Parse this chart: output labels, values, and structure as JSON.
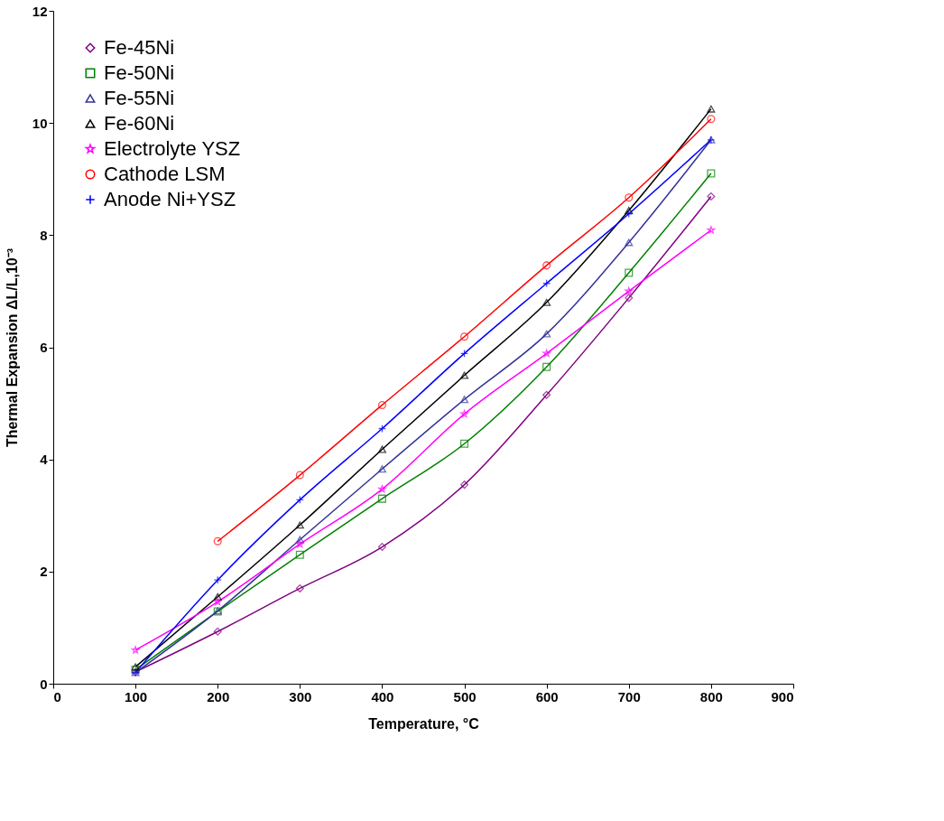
{
  "chart_data": {
    "type": "line",
    "xlabel": "Temperature, °C",
    "ylabel": "Thermal Expansion ΔL/L,10⁻³",
    "x": [
      100,
      200,
      300,
      400,
      500,
      600,
      700,
      800
    ],
    "xlim": [
      0,
      900
    ],
    "xticks": [
      0,
      100,
      200,
      300,
      400,
      500,
      600,
      700,
      800,
      900
    ],
    "ylim": [
      0,
      12
    ],
    "yticks": [
      0,
      2,
      4,
      6,
      8,
      10,
      12
    ],
    "grid": false,
    "legend": "top left",
    "line_style": "solid",
    "series": [
      {
        "name": "Fe-45Ni",
        "color": "#800080",
        "marker": "diamond",
        "values": [
          0.21,
          0.93,
          1.7,
          2.44,
          3.55,
          5.15,
          6.88,
          8.69
        ]
      },
      {
        "name": "Fe-50Ni",
        "color": "#008000",
        "marker": "square",
        "values": [
          0.25,
          1.29,
          2.3,
          3.3,
          4.28,
          5.65,
          7.33,
          9.1
        ]
      },
      {
        "name": "Fe-55Ni",
        "color": "#333399",
        "marker": "triangle",
        "values": [
          0.2,
          1.3,
          2.57,
          3.83,
          5.07,
          6.24,
          7.87,
          9.7
        ]
      },
      {
        "name": "Fe-60Ni",
        "color": "#000000",
        "marker": "triangle",
        "values": [
          0.3,
          1.55,
          2.83,
          4.18,
          5.5,
          6.8,
          8.44,
          10.25
        ]
      },
      {
        "name": "Electrolyte YSZ",
        "color": "#ff00ff",
        "marker": "star",
        "values": [
          0.6,
          1.46,
          2.49,
          3.47,
          4.81,
          5.89,
          7.0,
          8.09
        ]
      },
      {
        "name": "Cathode LSM",
        "color": "#ff0000",
        "marker": "circle",
        "values": [
          null,
          2.54,
          3.72,
          4.97,
          6.19,
          7.46,
          8.67,
          10.07
        ]
      },
      {
        "name": "Anode Ni+YSZ",
        "color": "#0000ff",
        "marker": "cross",
        "values": [
          0.2,
          1.85,
          3.28,
          4.55,
          5.89,
          7.14,
          8.38,
          9.7
        ]
      }
    ]
  }
}
